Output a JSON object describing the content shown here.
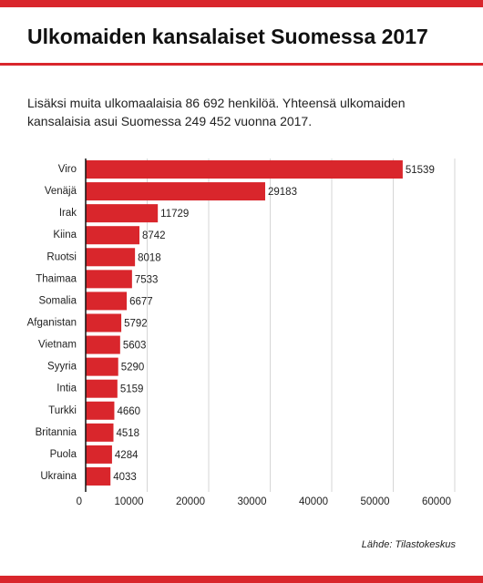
{
  "chart_data": {
    "type": "hbar",
    "title": "Ulkomaiden kansalaiset Suomessa 2017",
    "subtitle": "Lisäksi muita ulkomaalaisia 86 692 henkilöä. Yhteensä ulkomaiden kansalaisia asui Suomessa 249 452 vuonna 2017.",
    "categories": [
      "Viro",
      "Venäjä",
      "Irak",
      "Kiina",
      "Ruotsi",
      "Thaimaa",
      "Somalia",
      "Afganistan",
      "Vietnam",
      "Syyria",
      "Intia",
      "Turkki",
      "Britannia",
      "Puola",
      "Ukraina"
    ],
    "values": [
      51539,
      29183,
      11729,
      8742,
      8018,
      7533,
      6677,
      5792,
      5603,
      5290,
      5159,
      4660,
      4518,
      4284,
      4033
    ],
    "color": "#d9262c",
    "xlim": [
      0,
      60000
    ],
    "xticks": [
      0,
      10000,
      20000,
      30000,
      40000,
      50000,
      60000
    ],
    "grid": true,
    "source": "Lähde: Tilastokeskus"
  }
}
